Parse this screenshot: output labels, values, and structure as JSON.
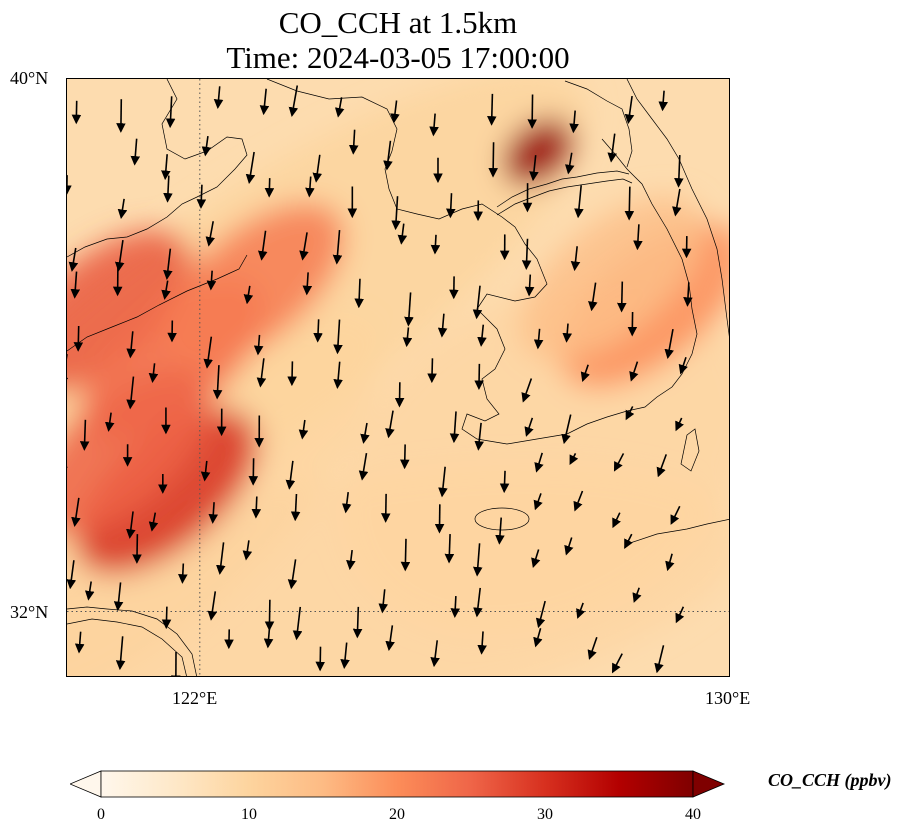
{
  "title": {
    "line1": "CO_CCH at 1.5km",
    "line2": "Time: 2024-03-05 17:00:00"
  },
  "axes": {
    "x_ticks": [
      "122°E",
      "130°E"
    ],
    "y_ticks": [
      "40°N",
      "32°N"
    ],
    "lon_range": [
      120,
      130
    ],
    "lat_range": [
      31,
      40
    ],
    "gridlines": "dotted",
    "grid_lon": [
      122
    ],
    "grid_lat": [
      32
    ]
  },
  "colorbar": {
    "label": "CO_CCH (ppbv)",
    "ticks": [
      "0",
      "10",
      "20",
      "30",
      "40"
    ],
    "range": [
      0,
      40
    ],
    "colormap": "OrRd",
    "extend": "both"
  },
  "map_data": {
    "field": "CO_CCH",
    "units": "ppbv",
    "background_value": 4,
    "plumes": [
      {
        "lon": 120.5,
        "lat": 36.5,
        "value": 26
      },
      {
        "lon": 121.6,
        "lat": 35.8,
        "value": 24
      },
      {
        "lon": 122.8,
        "lat": 36.9,
        "value": 22
      },
      {
        "lon": 121.5,
        "lat": 33.8,
        "value": 30
      },
      {
        "lon": 120.8,
        "lat": 34.4,
        "value": 25
      },
      {
        "lon": 127.1,
        "lat": 38.9,
        "value": 38
      },
      {
        "lon": 128.8,
        "lat": 36.6,
        "value": 20
      },
      {
        "lon": 128.2,
        "lat": 37.0,
        "value": 14
      }
    ],
    "wind_vectors": "wind arrows, mostly southward"
  }
}
